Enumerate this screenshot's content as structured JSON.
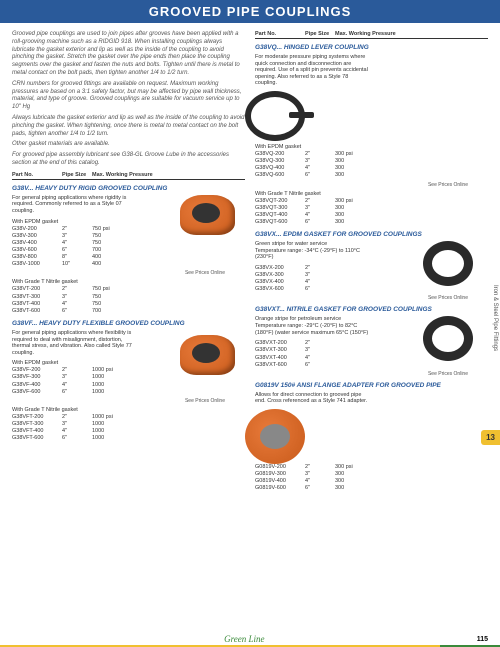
{
  "header": "GROOVED PIPE COUPLINGS",
  "intro": {
    "p1": "Grooved pipe couplings are used to join pipes after grooves have been applied with a roll-grooving machine such as a RIDGID 918. When installing couplings always lubricate the gasket exterior and lip as well as the inside of the coupling to avoid pinching the gasket. Stretch the gasket over the pipe ends then place the coupling segments over the gasket and fasten the nuts and bolts. Tighten until there is metal to metal contact on the bolt pads, then tighten another 1/4 to 1/2 turn.",
    "p2": "CRN numbers for grooved fittings are available on request. Maximum working pressures are based on a 3:1 safety factor, but may be affected by pipe wall thickness, material, and type of groove. Grooved couplings are suitable for vacuum service up to 10\" Hg",
    "p3": "Always lubricate the gasket exterior and lip as well as the inside of the coupling to avoid pinching the gasket. When tightening, once there is metal to metal contact on the bolt pads, tighten another 1/4 to 1/2 turn.",
    "p4": "Other gasket materials are available.",
    "p5": "For grooved pipe assembly lubricant see G38-GL Groove Lube in the accessories section at the end of this catalog."
  },
  "colhdr": {
    "partno": "Part No.",
    "size": "Pipe Size",
    "pressure": "Max. Working Pressure"
  },
  "priceNote": "See Prices Online",
  "g38v": {
    "title": "G38V... HEAVY DUTY RIGID GROOVED COUPLING",
    "desc": "For general piping applications where rigidity is required. Commonly referred to as a Style 07 coupling.",
    "epdm": "With EPDM gasket",
    "nitrile": "With Grade T Nitrile gasket",
    "rows1": [
      {
        "p": "G38V-200",
        "s": "2\"",
        "pr": "750 psi"
      },
      {
        "p": "G38V-300",
        "s": "3\"",
        "pr": "750"
      },
      {
        "p": "G38V-400",
        "s": "4\"",
        "pr": "750"
      },
      {
        "p": "G38V-600",
        "s": "6\"",
        "pr": "700"
      },
      {
        "p": "G38V-800",
        "s": "8\"",
        "pr": "400"
      },
      {
        "p": "G38V-1000",
        "s": "10\"",
        "pr": "400"
      }
    ],
    "rows2": [
      {
        "p": "G38VT-200",
        "s": "2\"",
        "pr": "750 psi"
      },
      {
        "p": "G38VT-300",
        "s": "3\"",
        "pr": "750"
      },
      {
        "p": "G38VT-400",
        "s": "4\"",
        "pr": "750"
      },
      {
        "p": "G38VT-600",
        "s": "6\"",
        "pr": "700"
      }
    ]
  },
  "g38vf": {
    "title": "G38VF... HEAVY DUTY FLEXIBLE GROOVED COUPLING",
    "desc": "For general piping applications where flexibility is required to deal with misalignment, distortion, thermal stress, and vibration. Also called Style 77 coupling.",
    "rows1": [
      {
        "p": "G38VF-200",
        "s": "2\"",
        "pr": "1000 psi"
      },
      {
        "p": "G38VF-300",
        "s": "3\"",
        "pr": "1000"
      },
      {
        "p": "G38VF-400",
        "s": "4\"",
        "pr": "1000"
      },
      {
        "p": "G38VF-600",
        "s": "6\"",
        "pr": "1000"
      }
    ],
    "rows2": [
      {
        "p": "G38VFT-200",
        "s": "2\"",
        "pr": "1000 psi"
      },
      {
        "p": "G38VFT-300",
        "s": "3\"",
        "pr": "1000"
      },
      {
        "p": "G38VFT-400",
        "s": "4\"",
        "pr": "1000"
      },
      {
        "p": "G38VFT-600",
        "s": "6\"",
        "pr": "1000"
      }
    ]
  },
  "g38vq": {
    "title": "G38VQ... HINGED LEVER COUPLING",
    "desc": "For moderate pressure piping systems where quick connection and disconnection are required. Use of a split pin prevents accidental opening. Also referred to as a Style 78 coupling.",
    "rows1": [
      {
        "p": "G38VQ-200",
        "s": "2\"",
        "pr": "300 psi"
      },
      {
        "p": "G38VQ-300",
        "s": "3\"",
        "pr": "300"
      },
      {
        "p": "G38VQ-400",
        "s": "4\"",
        "pr": "300"
      },
      {
        "p": "G38VQ-600",
        "s": "6\"",
        "pr": "300"
      }
    ],
    "rows2": [
      {
        "p": "G38VQT-200",
        "s": "2\"",
        "pr": "300 psi"
      },
      {
        "p": "G38VQT-300",
        "s": "3\"",
        "pr": "300"
      },
      {
        "p": "G38VQT-400",
        "s": "4\"",
        "pr": "300"
      },
      {
        "p": "G38VQT-600",
        "s": "6\"",
        "pr": "300"
      }
    ]
  },
  "g38vx": {
    "title": "G38VX... EPDM GASKET FOR GROOVED COUPLINGS",
    "desc": "Green stripe for water service\nTemperature range: -34°C (-29°F) to 110°C (230°F)",
    "rows": [
      {
        "p": "G38VX-200",
        "s": "2\""
      },
      {
        "p": "G38VX-300",
        "s": "3\""
      },
      {
        "p": "G38VX-400",
        "s": "4\""
      },
      {
        "p": "G38VX-600",
        "s": "6\""
      }
    ]
  },
  "g38vxt": {
    "title": "G38VXT... NITRILE GASKET FOR GROOVED COUPLINGS",
    "desc": "Orange stripe for petroleum service\nTemperature range: -29°C (-20°F) to 82°C (180°F) (water service maximum 65°C (150°F)",
    "rows": [
      {
        "p": "G38VXT-200",
        "s": "2\""
      },
      {
        "p": "G38VXT-300",
        "s": "3\""
      },
      {
        "p": "G38VXT-400",
        "s": "4\""
      },
      {
        "p": "G38VXT-600",
        "s": "6\""
      }
    ]
  },
  "g0819v": {
    "title": "G0819V 150# ANSI FLANGE ADAPTER FOR GROOVED PIPE",
    "desc": "Allows for direct connection to grooved pipe end. Cross referenced as a Style 741 adapter.",
    "rows": [
      {
        "p": "G0819V-200",
        "s": "2\"",
        "pr": "300 psi"
      },
      {
        "p": "G0819V-300",
        "s": "3\"",
        "pr": "300"
      },
      {
        "p": "G0819V-400",
        "s": "4\"",
        "pr": "300"
      },
      {
        "p": "G0819V-600",
        "s": "6\"",
        "pr": "300"
      }
    ]
  },
  "sideTab": "Iron & Steel Pipe Fittings",
  "pageTab": "13",
  "footer": {
    "brand": "Green Line",
    "page": "115"
  }
}
